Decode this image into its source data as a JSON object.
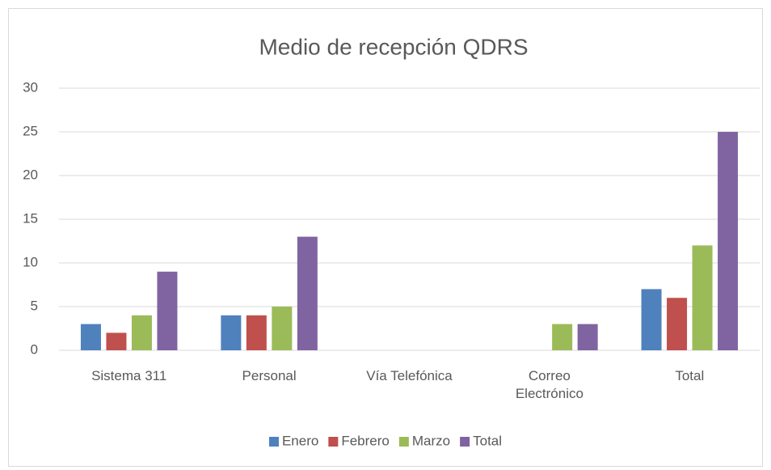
{
  "chart_data": {
    "type": "bar",
    "title": "Medio de recepción   QDRS",
    "categories": [
      "Sistema 311",
      "Personal",
      "Vía Telefónica",
      "Correo Electrónico",
      "Total"
    ],
    "series": [
      {
        "name": "Enero",
        "color": "#4f81bd",
        "values": [
          3,
          4,
          0,
          0,
          7
        ]
      },
      {
        "name": "Febrero",
        "color": "#c0504d",
        "values": [
          2,
          4,
          0,
          0,
          6
        ]
      },
      {
        "name": "Marzo",
        "color": "#9bbb59",
        "values": [
          4,
          5,
          0,
          3,
          12
        ]
      },
      {
        "name": "Total",
        "color": "#8064a2",
        "values": [
          9,
          13,
          0,
          3,
          25
        ]
      }
    ],
    "ylim": [
      0,
      30
    ],
    "yticks": [
      0,
      5,
      10,
      15,
      20,
      25,
      30
    ],
    "grid": true,
    "legend": "bottom"
  }
}
